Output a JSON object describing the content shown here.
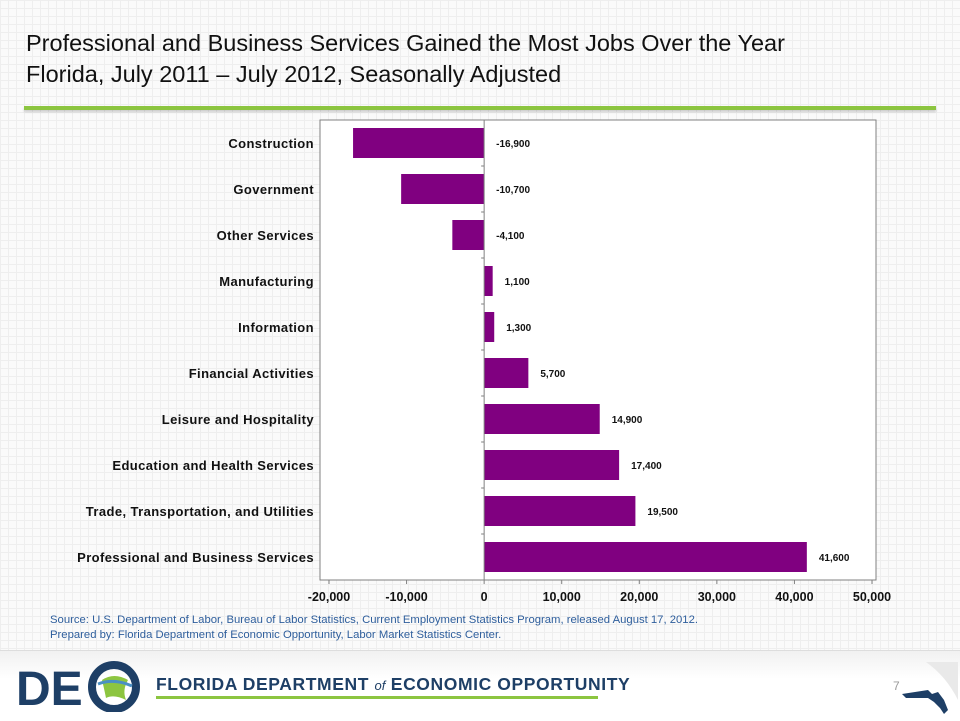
{
  "slide": {
    "title_line1": "Professional and Business Services Gained the Most Jobs Over the Year",
    "title_line2": "Florida, July 2011 – July 2012, Seasonally Adjusted",
    "source_line1": "Source:  U.S. Department of Labor, Bureau of Labor Statistics, Current Employment Statistics Program, released August 17,  2012.",
    "source_line2": "Prepared by:  Florida Department of Economic Opportunity, Labor Market Statistics Center.",
    "page_number": "7",
    "footer_org_part1": "FLORIDA DEPARTMENT ",
    "footer_org_of": "of",
    "footer_org_part2": " ECONOMIC OPPORTUNITY",
    "logo_letters": "DE"
  },
  "colors": {
    "bar": "#800080",
    "accent_green": "#8cc540",
    "source_text": "#2e5e9c",
    "logo_navy": "#1e3f66"
  },
  "chart_data": {
    "type": "bar",
    "orientation": "horizontal",
    "categories": [
      "Construction",
      "Government",
      "Other Services",
      "Manufacturing",
      "Information",
      "Financial Activities",
      "Leisure and Hospitality",
      "Education and Health Services",
      "Trade, Transportation, and Utilities",
      "Professional and Business Services"
    ],
    "values": [
      -16900,
      -10700,
      -4100,
      1100,
      1300,
      5700,
      14900,
      17400,
      19500,
      41600
    ],
    "data_labels": [
      "-16,900",
      "-10,700",
      "-4,100",
      "1,100",
      "1,300",
      "5,700",
      "14,900",
      "17,400",
      "19,500",
      "41,600"
    ],
    "xlim": [
      -20000,
      50000
    ],
    "xticks": [
      -20000,
      -10000,
      0,
      10000,
      20000,
      30000,
      40000,
      50000
    ],
    "xtick_labels": [
      "-20,000",
      "-10,000",
      "0",
      "10,000",
      "20,000",
      "30,000",
      "40,000",
      "50,000"
    ],
    "title": "",
    "xlabel": "",
    "ylabel": "",
    "grid": false,
    "legend": "none"
  }
}
